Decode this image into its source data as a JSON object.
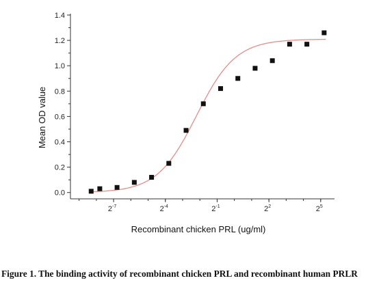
{
  "chart_data": {
    "type": "scatter",
    "title": "",
    "xlabel": "Recombinant chicken PRL (ug/ml)",
    "ylabel": "Mean OD value",
    "x_scale": "log2",
    "xlim": [
      -9.5,
      5.8
    ],
    "ylim": [
      -0.05,
      1.4
    ],
    "x_ticks": [
      {
        "base": "2",
        "exp": "-7",
        "value": -7
      },
      {
        "base": "2",
        "exp": "-4",
        "value": -4
      },
      {
        "base": "2",
        "exp": "-1",
        "value": -1
      },
      {
        "base": "2",
        "exp": "2",
        "value": 2
      },
      {
        "base": "2",
        "exp": "5",
        "value": 5
      }
    ],
    "y_ticks": [
      "0.0",
      "0.2",
      "0.4",
      "0.6",
      "0.8",
      "1.0",
      "1.2",
      "1.4"
    ],
    "points": [
      {
        "x": -8.3,
        "y": 0.01
      },
      {
        "x": -7.8,
        "y": 0.03
      },
      {
        "x": -6.8,
        "y": 0.04
      },
      {
        "x": -5.8,
        "y": 0.08
      },
      {
        "x": -4.8,
        "y": 0.12
      },
      {
        "x": -3.8,
        "y": 0.23
      },
      {
        "x": -2.8,
        "y": 0.49
      },
      {
        "x": -1.8,
        "y": 0.7
      },
      {
        "x": -0.8,
        "y": 0.82
      },
      {
        "x": 0.2,
        "y": 0.9
      },
      {
        "x": 1.2,
        "y": 0.98
      },
      {
        "x": 2.2,
        "y": 1.04
      },
      {
        "x": 3.2,
        "y": 1.17
      },
      {
        "x": 4.2,
        "y": 1.17
      },
      {
        "x": 5.2,
        "y": 1.26
      }
    ],
    "fit_curve": {
      "bottom": 0.0,
      "top": 1.21,
      "midpoint": -2.2,
      "slope": 0.88
    },
    "colors": {
      "points": "#111111",
      "fit": "#e88a8a",
      "axis": "#333333"
    },
    "grid": false
  },
  "caption": "Figure 1. The binding activity of recombinant chicken PRL and recombinant human PRLR"
}
